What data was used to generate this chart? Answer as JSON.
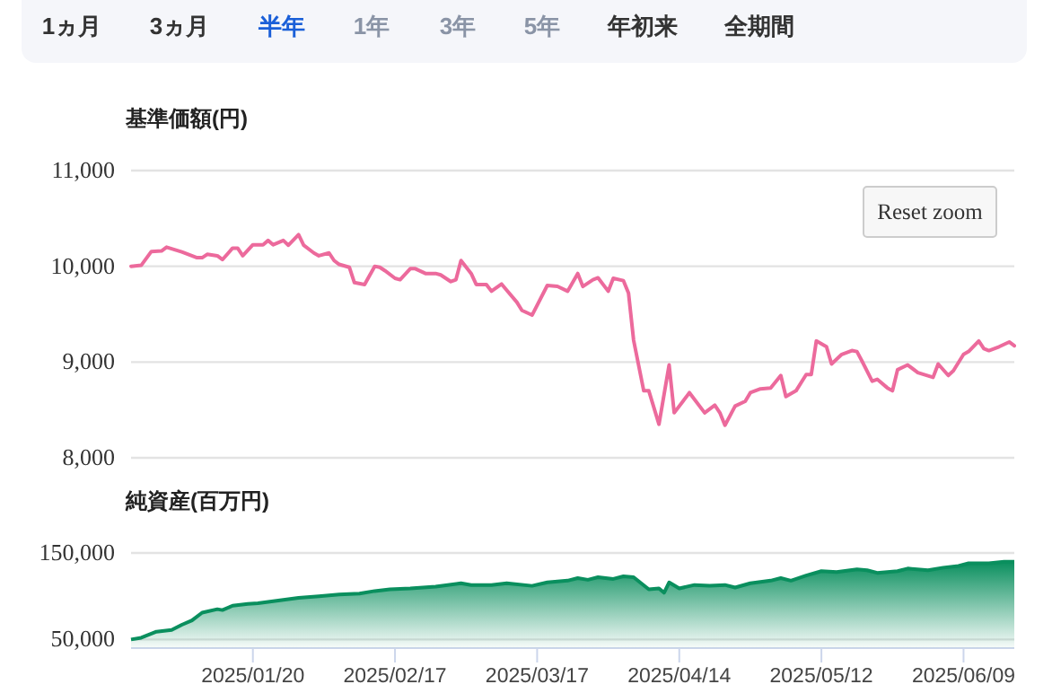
{
  "chart_data": [
    {
      "type": "other",
      "annotations": [
        "1ヵ月",
        "3ヵ月",
        "半年",
        "1年",
        "3年",
        "5年",
        "年初来",
        "全期間"
      ],
      "colors": [
        "#333333",
        "#333333",
        "#1a5fd8",
        "#8a94a6",
        "#8a94a6",
        "#8a94a6",
        "#333333",
        "#333333"
      ]
    },
    {
      "type": "line",
      "ylabel": "基準価額(円)",
      "xlim": [
        "2024-12-27",
        "2025-06-19"
      ],
      "ylim": [
        8000,
        11000
      ],
      "yticks": [
        {
          "value": 8000,
          "label": "8,000"
        },
        {
          "value": 9000,
          "label": "9,000"
        },
        {
          "value": 10000,
          "label": "10,000"
        },
        {
          "value": 11000,
          "label": "11,000"
        }
      ],
      "grid": "y",
      "tick_labels": "y",
      "annotations": [
        "Reset zoom"
      ],
      "series": [
        {
          "color": "#ec6a9c",
          "x": [
            "2024-12-27",
            "2024-12-29",
            "2024-12-31",
            "2025-01-02",
            "2025-01-03",
            "2025-01-06",
            "2025-01-09",
            "2025-01-10",
            "2025-01-11",
            "2025-01-13",
            "2025-01-14",
            "2025-01-16",
            "2025-01-17",
            "2025-01-18",
            "2025-01-20",
            "2025-01-22",
            "2025-01-23",
            "2025-01-24",
            "2025-01-26",
            "2025-01-27",
            "2025-01-29",
            "2025-01-30",
            "2025-02-01",
            "2025-02-02",
            "2025-02-04",
            "2025-02-05",
            "2025-02-06",
            "2025-02-08",
            "2025-02-09",
            "2025-02-11",
            "2025-02-13",
            "2025-02-14",
            "2025-02-15",
            "2025-02-17",
            "2025-02-18",
            "2025-02-20",
            "2025-02-21",
            "2025-02-23",
            "2025-02-25",
            "2025-02-26",
            "2025-02-28",
            "2025-03-01",
            "2025-03-02",
            "2025-03-04",
            "2025-03-05",
            "2025-03-07",
            "2025-03-08",
            "2025-03-10",
            "2025-03-11",
            "2025-03-13",
            "2025-03-14",
            "2025-03-16",
            "2025-03-19",
            "2025-03-21",
            "2025-03-23",
            "2025-03-25",
            "2025-03-26",
            "2025-03-28",
            "2025-03-29",
            "2025-03-31",
            "2025-04-01",
            "2025-04-03",
            "2025-04-04",
            "2025-04-05",
            "2025-04-07",
            "2025-04-08",
            "2025-04-10",
            "2025-04-12",
            "2025-04-13",
            "2025-04-16",
            "2025-04-19",
            "2025-04-21",
            "2025-04-22",
            "2025-04-23",
            "2025-04-25",
            "2025-04-27",
            "2025-04-28",
            "2025-04-30",
            "2025-05-02",
            "2025-05-04",
            "2025-05-05",
            "2025-05-07",
            "2025-05-09",
            "2025-05-10",
            "2025-05-11",
            "2025-05-13",
            "2025-05-14",
            "2025-05-16",
            "2025-05-18",
            "2025-05-19",
            "2025-05-20",
            "2025-05-22",
            "2025-05-23",
            "2025-05-25",
            "2025-05-26",
            "2025-05-27",
            "2025-05-29",
            "2025-05-31",
            "2025-06-03",
            "2025-06-04",
            "2025-06-06",
            "2025-06-07",
            "2025-06-09",
            "2025-06-10",
            "2025-06-12",
            "2025-06-13",
            "2025-06-14",
            "2025-06-16",
            "2025-06-18",
            "2025-06-19"
          ],
          "values": [
            10000,
            10010,
            10155,
            10160,
            10200,
            10150,
            10090,
            10090,
            10125,
            10110,
            10070,
            10190,
            10190,
            10110,
            10225,
            10225,
            10270,
            10225,
            10270,
            10220,
            10330,
            10220,
            10140,
            10110,
            10140,
            10060,
            10020,
            9990,
            9830,
            9810,
            10000,
            9990,
            9955,
            9875,
            9860,
            9975,
            9975,
            9925,
            9925,
            9910,
            9840,
            9860,
            10060,
            9925,
            9810,
            9810,
            9740,
            9815,
            9750,
            9625,
            9540,
            9490,
            9800,
            9790,
            9740,
            9925,
            9790,
            9860,
            9880,
            9740,
            9875,
            9850,
            9720,
            9230,
            8700,
            8700,
            8350,
            8970,
            8470,
            8680,
            8470,
            8550,
            8470,
            8340,
            8540,
            8590,
            8680,
            8720,
            8730,
            8860,
            8640,
            8700,
            8870,
            8870,
            9220,
            9160,
            8980,
            9080,
            9120,
            9110,
            9010,
            8800,
            8820,
            8730,
            8700,
            8920,
            8970,
            8890,
            8840,
            8980,
            8860,
            8910,
            9080,
            9110,
            9220,
            9140,
            9120,
            9160,
            9210,
            9170
          ]
        }
      ]
    },
    {
      "type": "area",
      "ylabel": "純資産(百万円)",
      "xlim": [
        "2024-12-27",
        "2025-06-19"
      ],
      "ylim": [
        40000,
        150000
      ],
      "yticks": [
        {
          "value": 50000,
          "label": "50,000"
        },
        {
          "value": 150000,
          "label": "150,000"
        }
      ],
      "xticks": [
        {
          "value": "2025-01-20",
          "label": "2025/01/20"
        },
        {
          "value": "2025-02-17",
          "label": "2025/02/17"
        },
        {
          "value": "2025-03-17",
          "label": "2025/03/17"
        },
        {
          "value": "2025-04-14",
          "label": "2025/04/14"
        },
        {
          "value": "2025-05-12",
          "label": "2025/05/12"
        },
        {
          "value": "2025-06-09",
          "label": "2025/06/09"
        }
      ],
      "grid": "y",
      "series": [
        {
          "color": "#0a8f5e",
          "x": [
            "2024-12-27",
            "2024-12-29",
            "2025-01-01",
            "2025-01-04",
            "2025-01-06",
            "2025-01-08",
            "2025-01-10",
            "2025-01-13",
            "2025-01-14",
            "2025-01-16",
            "2025-01-19",
            "2025-01-21",
            "2025-01-25",
            "2025-01-29",
            "2025-02-02",
            "2025-02-06",
            "2025-02-10",
            "2025-02-13",
            "2025-02-16",
            "2025-02-20",
            "2025-02-25",
            "2025-03-02",
            "2025-03-04",
            "2025-03-08",
            "2025-03-11",
            "2025-03-16",
            "2025-03-19",
            "2025-03-23",
            "2025-03-25",
            "2025-03-27",
            "2025-03-29",
            "2025-04-01",
            "2025-04-03",
            "2025-04-05",
            "2025-04-08",
            "2025-04-10",
            "2025-04-11",
            "2025-04-12",
            "2025-04-14",
            "2025-04-17",
            "2025-04-20",
            "2025-04-23",
            "2025-04-25",
            "2025-04-28",
            "2025-05-02",
            "2025-05-04",
            "2025-05-06",
            "2025-05-09",
            "2025-05-12",
            "2025-05-15",
            "2025-05-19",
            "2025-05-21",
            "2025-05-23",
            "2025-05-27",
            "2025-05-29",
            "2025-06-02",
            "2025-06-05",
            "2025-06-08",
            "2025-06-10",
            "2025-06-14",
            "2025-06-17",
            "2025-06-19"
          ],
          "values": [
            50000,
            52000,
            59000,
            61000,
            67000,
            72000,
            81000,
            85000,
            84000,
            89000,
            91000,
            92000,
            95000,
            98000,
            100000,
            102000,
            103000,
            106000,
            108000,
            109000,
            111000,
            115000,
            113000,
            113000,
            115000,
            112000,
            116000,
            118000,
            121000,
            119000,
            122000,
            120000,
            123000,
            122000,
            108000,
            109000,
            104000,
            116000,
            109000,
            113000,
            112000,
            113000,
            110000,
            115000,
            118000,
            121000,
            118000,
            124000,
            129000,
            128000,
            131000,
            130000,
            127000,
            129000,
            132000,
            130000,
            133000,
            135000,
            138000,
            138000,
            140000,
            140000
          ]
        }
      ]
    }
  ]
}
